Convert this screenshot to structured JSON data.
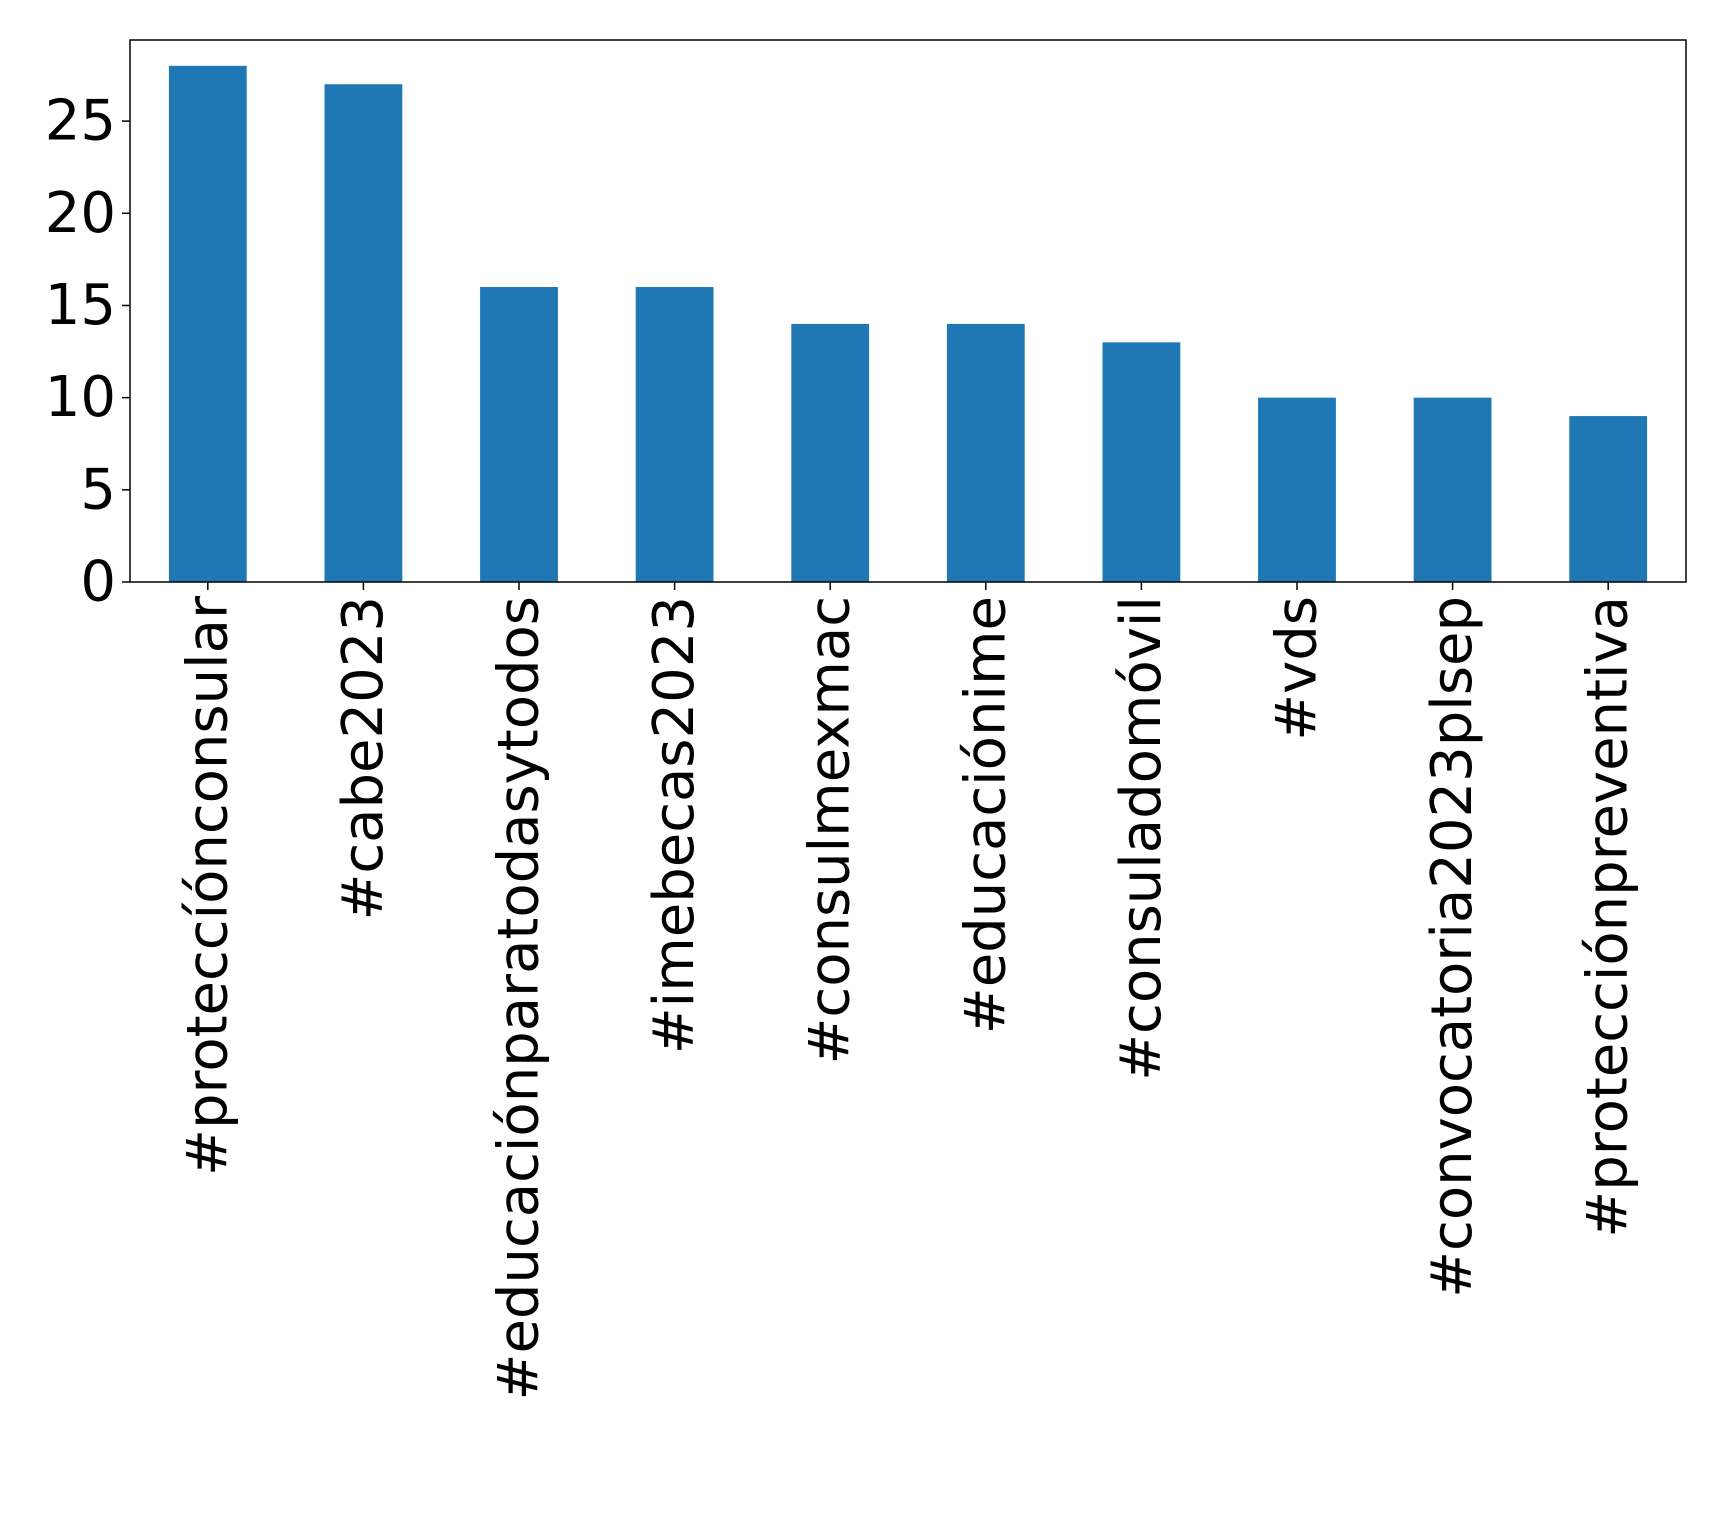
{
  "chart_data": {
    "type": "bar",
    "title": "",
    "xlabel": "",
    "ylabel": "",
    "categories": [
      "#proteccíónconsular",
      "#cabe2023",
      "#educaciónparatodasytodos",
      "#imebecas2023",
      "#consulmexmac",
      "#educaciónime",
      "#consuladomóvil",
      "#vds",
      "#convocatoria2023plsep",
      "#protecciónpreventiva"
    ],
    "values": [
      28,
      27,
      16,
      16,
      14,
      14,
      13,
      10,
      10,
      9
    ],
    "ylim": [
      0,
      29.4
    ],
    "yticks": [
      0,
      5,
      10,
      15,
      20,
      25
    ],
    "grid": false,
    "legend": "none",
    "bar_color": "#1f77b4"
  }
}
